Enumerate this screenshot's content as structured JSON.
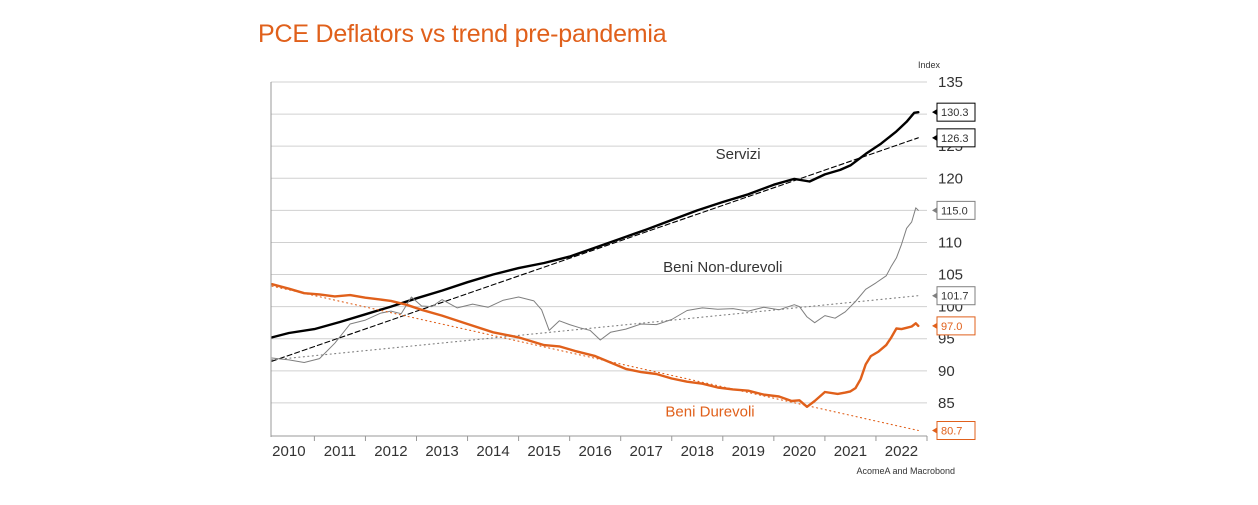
{
  "title": "PCE Deflators vs trend pre-pandemia",
  "source": "AcomeA and Macrobond",
  "colors": {
    "accent": "#e0601b",
    "servizi": "#000000",
    "nondurevoli": "#7f7f7f",
    "durevoli": "#e0601b",
    "grid": "#d0d0d0"
  },
  "chart_data": {
    "type": "line",
    "title": "PCE Deflators vs trend pre-pandemia",
    "ylabel": "Index",
    "xlim": [
      2009.65,
      2022.5
    ],
    "ylim": [
      80,
      135
    ],
    "yticks": [
      85,
      90,
      95,
      100,
      105,
      110,
      115,
      120,
      125,
      130,
      135
    ],
    "xtick_labels": [
      "2010",
      "2011",
      "2012",
      "2013",
      "2014",
      "2015",
      "2016",
      "2017",
      "2018",
      "2019",
      "2020",
      "2021",
      "2022"
    ],
    "grid": true,
    "series": [
      {
        "name": "Servizi",
        "key": "servizi",
        "style": "solid",
        "width": 2.4,
        "x": [
          2009.67,
          2010.0,
          2010.5,
          2011.0,
          2011.5,
          2012.0,
          2012.5,
          2013.0,
          2013.5,
          2014.0,
          2014.5,
          2015.0,
          2015.5,
          2016.0,
          2016.5,
          2017.0,
          2017.5,
          2018.0,
          2018.5,
          2019.0,
          2019.5,
          2019.9,
          2020.2,
          2020.5,
          2020.8,
          2021.0,
          2021.3,
          2021.6,
          2021.9,
          2022.1,
          2022.25,
          2022.33
        ],
        "y": [
          95.2,
          95.9,
          96.5,
          97.6,
          98.8,
          100.0,
          101.3,
          102.5,
          103.8,
          105.0,
          106.0,
          106.8,
          107.8,
          109.2,
          110.6,
          112.0,
          113.5,
          115.0,
          116.3,
          117.5,
          119.0,
          119.9,
          119.5,
          120.6,
          121.3,
          122.0,
          123.8,
          125.4,
          127.3,
          128.8,
          130.2,
          130.3
        ]
      },
      {
        "name": "Servizi trend",
        "key": "servizi",
        "style": "dashed",
        "width": 1.1,
        "x": [
          2009.67,
          2022.33
        ],
        "y": [
          91.5,
          126.3
        ]
      },
      {
        "name": "Beni Non-durevoli",
        "key": "nondurevoli",
        "style": "solid",
        "width": 1.0,
        "x": [
          2009.67,
          2010.0,
          2010.3,
          2010.6,
          2010.9,
          2011.2,
          2011.5,
          2011.8,
          2012.0,
          2012.2,
          2012.4,
          2012.6,
          2012.8,
          2013.0,
          2013.3,
          2013.6,
          2013.9,
          2014.2,
          2014.5,
          2014.8,
          2014.95,
          2015.1,
          2015.3,
          2015.5,
          2015.7,
          2015.9,
          2016.1,
          2016.3,
          2016.6,
          2016.9,
          2017.2,
          2017.5,
          2017.8,
          2018.1,
          2018.4,
          2018.7,
          2019.0,
          2019.3,
          2019.6,
          2019.9,
          2020.0,
          2020.15,
          2020.3,
          2020.5,
          2020.7,
          2020.9,
          2021.1,
          2021.3,
          2021.5,
          2021.7,
          2021.8,
          2021.9,
          2022.0,
          2022.1,
          2022.2,
          2022.28,
          2022.33
        ],
        "y": [
          92.0,
          91.7,
          91.3,
          91.9,
          94.3,
          97.3,
          97.9,
          99.0,
          99.3,
          98.9,
          101.5,
          100.1,
          100.0,
          101.1,
          99.8,
          100.4,
          99.9,
          101.0,
          101.5,
          100.9,
          99.5,
          96.3,
          97.8,
          97.2,
          96.7,
          96.3,
          94.8,
          96.0,
          96.5,
          97.3,
          97.2,
          98.0,
          99.4,
          99.8,
          99.6,
          99.7,
          99.3,
          99.9,
          99.5,
          100.3,
          100.0,
          98.4,
          97.5,
          98.6,
          98.2,
          99.2,
          100.8,
          102.7,
          103.7,
          104.8,
          106.3,
          107.6,
          109.7,
          112.2,
          113.2,
          115.4,
          115.0
        ]
      },
      {
        "name": "Beni Non-durevoli trend",
        "key": "nondurevoli",
        "style": "dotted",
        "width": 1.1,
        "x": [
          2009.67,
          2022.33
        ],
        "y": [
          91.7,
          101.7
        ]
      },
      {
        "name": "Beni Durevoli",
        "key": "durevoli",
        "style": "solid",
        "width": 2.4,
        "x": [
          2009.67,
          2010.0,
          2010.3,
          2010.6,
          2010.9,
          2011.2,
          2011.5,
          2011.8,
          2012.0,
          2012.3,
          2012.6,
          2013.0,
          2013.5,
          2014.0,
          2014.5,
          2015.0,
          2015.3,
          2015.6,
          2016.0,
          2016.3,
          2016.6,
          2016.9,
          2017.2,
          2017.5,
          2017.8,
          2018.1,
          2018.4,
          2018.7,
          2019.0,
          2019.3,
          2019.6,
          2019.85,
          2020.0,
          2020.15,
          2020.3,
          2020.5,
          2020.75,
          2020.9,
          2021.0,
          2021.1,
          2021.2,
          2021.3,
          2021.4,
          2021.55,
          2021.7,
          2021.8,
          2021.9,
          2022.0,
          2022.1,
          2022.2,
          2022.28,
          2022.33
        ],
        "y": [
          103.5,
          102.8,
          102.1,
          101.9,
          101.6,
          101.8,
          101.4,
          101.1,
          100.9,
          100.3,
          99.5,
          98.6,
          97.3,
          96.0,
          95.2,
          94.0,
          93.8,
          93.1,
          92.3,
          91.3,
          90.3,
          89.8,
          89.5,
          88.8,
          88.3,
          88.0,
          87.4,
          87.1,
          86.9,
          86.3,
          86.0,
          85.3,
          85.4,
          84.4,
          85.3,
          86.7,
          86.4,
          86.6,
          86.8,
          87.3,
          88.7,
          91.0,
          92.3,
          93.0,
          94.0,
          95.2,
          96.6,
          96.5,
          96.7,
          96.9,
          97.4,
          97.0
        ]
      },
      {
        "name": "Beni Durevoli trend",
        "key": "durevoli",
        "style": "dotted",
        "width": 1.1,
        "x": [
          2009.67,
          2022.33
        ],
        "y": [
          103.2,
          80.7
        ]
      }
    ],
    "series_labels": [
      {
        "text": "Servizi",
        "key": "servizi",
        "x": 2018.8,
        "y": 123.0
      },
      {
        "text": "Beni Non-durevoli",
        "key": "nondurevoli",
        "x": 2018.5,
        "y": 105.4
      },
      {
        "text": "Beni Durevoli",
        "key": "durevoli",
        "x": 2018.25,
        "y": 82.9
      }
    ],
    "end_labels": [
      {
        "text": "130.3",
        "value": 130.3,
        "key": "servizi"
      },
      {
        "text": "126.3",
        "value": 126.3,
        "key": "servizi"
      },
      {
        "text": "115.0",
        "value": 115.0,
        "key": "nondurevoli"
      },
      {
        "text": "101.7",
        "value": 101.7,
        "key": "nondurevoli"
      },
      {
        "text": "97.0",
        "value": 97.0,
        "key": "durevoli"
      },
      {
        "text": "80.7",
        "value": 80.7,
        "key": "durevoli"
      }
    ]
  }
}
